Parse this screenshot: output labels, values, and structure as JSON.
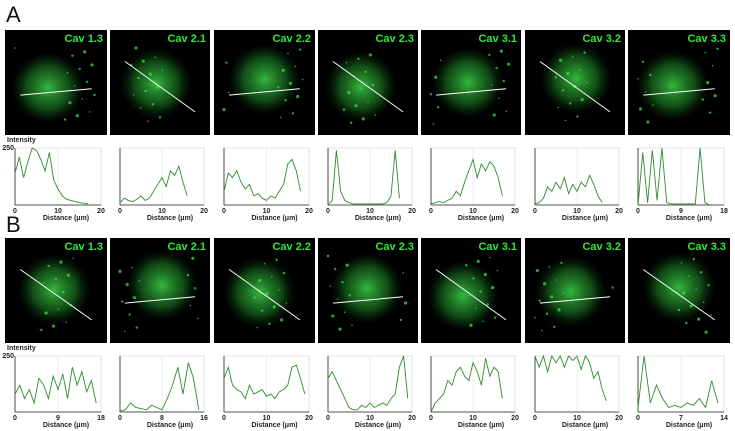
{
  "panel_labels": [
    "A",
    "B"
  ],
  "chart_data": [
    {
      "type": "line",
      "title": "Cav 1.3",
      "y_label": "Intensity",
      "x_label": "Distance (μm)",
      "color": "#2e8b2e",
      "grid": true,
      "xlim": [
        0,
        20
      ],
      "xticks": [
        0,
        10,
        20
      ],
      "ylim": [
        0,
        250
      ],
      "yticks": [
        250
      ],
      "x": [
        0,
        1,
        2,
        3,
        4,
        5,
        6,
        7,
        8,
        9,
        10,
        11,
        12,
        13,
        14,
        15,
        16,
        17
      ],
      "values": [
        140,
        210,
        120,
        190,
        250,
        240,
        200,
        150,
        230,
        110,
        70,
        40,
        25,
        20,
        15,
        10,
        8,
        5
      ]
    },
    {
      "type": "line",
      "title": "Cav 2.1",
      "x_label": "Distance (μm)",
      "color": "#2e8b2e",
      "grid": true,
      "xlim": [
        0,
        20
      ],
      "xticks": [
        0,
        10,
        20
      ],
      "ylim": [
        0,
        250
      ],
      "yticks": [],
      "x": [
        0,
        1,
        2,
        3,
        4,
        5,
        6,
        7,
        8,
        9,
        10,
        11,
        12,
        13,
        14,
        15,
        16
      ],
      "values": [
        10,
        30,
        20,
        15,
        25,
        40,
        20,
        30,
        60,
        90,
        120,
        80,
        150,
        130,
        170,
        100,
        40
      ]
    },
    {
      "type": "line",
      "title": "Cav 2.2",
      "x_label": "Distance (μm)",
      "color": "#2e8b2e",
      "grid": true,
      "xlim": [
        0,
        20
      ],
      "xticks": [
        0,
        10,
        20
      ],
      "ylim": [
        0,
        250
      ],
      "yticks": [],
      "x": [
        0,
        1,
        2,
        3,
        4,
        5,
        6,
        7,
        8,
        9,
        10,
        11,
        12,
        13,
        14,
        15,
        16,
        17,
        18
      ],
      "values": [
        60,
        140,
        120,
        150,
        100,
        70,
        90,
        40,
        50,
        30,
        20,
        40,
        30,
        60,
        90,
        180,
        200,
        150,
        60
      ]
    },
    {
      "type": "line",
      "title": "Cav 2.3",
      "x_label": "Distance (μm)",
      "color": "#2e8b2e",
      "grid": true,
      "xlim": [
        0,
        20
      ],
      "xticks": [
        0,
        10,
        20
      ],
      "ylim": [
        0,
        250
      ],
      "yticks": [],
      "x": [
        0,
        1,
        2,
        3,
        4,
        5,
        6,
        7,
        8,
        9,
        10,
        11,
        12,
        13,
        14,
        15,
        16,
        17
      ],
      "values": [
        0,
        20,
        240,
        60,
        20,
        10,
        5,
        5,
        5,
        5,
        5,
        5,
        5,
        5,
        10,
        40,
        240,
        30
      ]
    },
    {
      "type": "line",
      "title": "Cav 3.1",
      "x_label": "Distance (μm)",
      "color": "#2e8b2e",
      "grid": true,
      "xlim": [
        0,
        20
      ],
      "xticks": [
        0,
        10,
        20
      ],
      "ylim": [
        0,
        250
      ],
      "yticks": [],
      "x": [
        0,
        1,
        2,
        3,
        4,
        5,
        6,
        7,
        8,
        9,
        10,
        11,
        12,
        13,
        14,
        15,
        16,
        17
      ],
      "values": [
        5,
        10,
        15,
        10,
        20,
        30,
        60,
        40,
        100,
        150,
        200,
        120,
        180,
        150,
        190,
        170,
        120,
        40
      ]
    },
    {
      "type": "line",
      "title": "Cav 3.2",
      "x_label": "Distance (μm)",
      "color": "#2e8b2e",
      "grid": true,
      "xlim": [
        0,
        20
      ],
      "xticks": [
        0,
        10,
        20
      ],
      "ylim": [
        0,
        250
      ],
      "yticks": [],
      "x": [
        0,
        1,
        2,
        3,
        4,
        5,
        6,
        7,
        8,
        9,
        10,
        11,
        12,
        13,
        14,
        15,
        16
      ],
      "values": [
        5,
        10,
        30,
        80,
        60,
        100,
        70,
        120,
        50,
        90,
        60,
        100,
        80,
        130,
        90,
        40,
        10
      ]
    },
    {
      "type": "line",
      "title": "Cav 3.3",
      "x_label": "Distance (μm)",
      "color": "#2e8b2e",
      "grid": true,
      "xlim": [
        0,
        18
      ],
      "xticks": [
        0,
        9,
        18
      ],
      "ylim": [
        0,
        250
      ],
      "yticks": [],
      "x": [
        0,
        1,
        2,
        3,
        4,
        5,
        6,
        7,
        8,
        9,
        10,
        11,
        12,
        13,
        14,
        15
      ],
      "values": [
        0,
        230,
        10,
        240,
        20,
        250,
        10,
        5,
        5,
        5,
        5,
        5,
        5,
        250,
        10,
        0
      ]
    },
    {
      "type": "line",
      "title": "Cav 1.3",
      "y_label": "Intensity",
      "x_label": "Distance (μm)",
      "color": "#2e8b2e",
      "grid": true,
      "xlim": [
        0,
        18
      ],
      "xticks": [
        0,
        9,
        18
      ],
      "ylim": [
        0,
        250
      ],
      "yticks": [
        250
      ],
      "x": [
        0,
        1,
        2,
        3,
        4,
        5,
        6,
        7,
        8,
        9,
        10,
        11,
        12,
        13,
        14,
        15,
        16,
        17
      ],
      "values": [
        80,
        120,
        60,
        100,
        40,
        150,
        120,
        60,
        160,
        100,
        170,
        60,
        200,
        120,
        180,
        90,
        140,
        40
      ]
    },
    {
      "type": "line",
      "title": "Cav 2.1",
      "x_label": "Distance (μm)",
      "color": "#2e8b2e",
      "grid": true,
      "xlim": [
        0,
        16
      ],
      "xticks": [
        0,
        8,
        16
      ],
      "ylim": [
        0,
        250
      ],
      "yticks": [],
      "x": [
        0,
        1,
        2,
        3,
        4,
        5,
        6,
        7,
        8,
        9,
        10,
        11,
        12,
        13,
        14,
        15
      ],
      "values": [
        5,
        10,
        40,
        20,
        15,
        10,
        30,
        20,
        10,
        60,
        120,
        200,
        80,
        220,
        150,
        10
      ]
    },
    {
      "type": "line",
      "title": "Cav 2.2",
      "x_label": "Distance (μm)",
      "color": "#2e8b2e",
      "grid": true,
      "xlim": [
        0,
        20
      ],
      "xticks": [
        0,
        10,
        20
      ],
      "ylim": [
        0,
        250
      ],
      "yticks": [],
      "x": [
        0,
        1,
        2,
        3,
        4,
        5,
        6,
        7,
        8,
        9,
        10,
        11,
        12,
        13,
        14,
        15,
        16,
        17,
        18,
        19
      ],
      "values": [
        150,
        200,
        120,
        100,
        90,
        60,
        120,
        80,
        90,
        100,
        70,
        80,
        60,
        90,
        100,
        120,
        200,
        210,
        150,
        80
      ]
    },
    {
      "type": "line",
      "title": "Cav 2.3",
      "x_label": "Distance (μm)",
      "color": "#2e8b2e",
      "grid": true,
      "xlim": [
        0,
        20
      ],
      "xticks": [
        0,
        10,
        20
      ],
      "ylim": [
        0,
        250
      ],
      "yticks": [],
      "x": [
        0,
        1,
        2,
        3,
        4,
        5,
        6,
        7,
        8,
        9,
        10,
        11,
        12,
        13,
        14,
        15,
        16,
        17,
        18,
        19
      ],
      "values": [
        150,
        180,
        140,
        100,
        60,
        20,
        10,
        10,
        30,
        20,
        40,
        20,
        30,
        40,
        30,
        60,
        80,
        200,
        250,
        60
      ]
    },
    {
      "type": "line",
      "title": "Cav 3.1",
      "x_label": "Distance (μm)",
      "color": "#2e8b2e",
      "grid": true,
      "xlim": [
        0,
        20
      ],
      "xticks": [
        0,
        10,
        20
      ],
      "ylim": [
        0,
        250
      ],
      "yticks": [],
      "x": [
        0,
        1,
        2,
        3,
        4,
        5,
        6,
        7,
        8,
        9,
        10,
        11,
        12,
        13,
        14,
        15,
        16,
        17
      ],
      "values": [
        0,
        40,
        60,
        80,
        140,
        120,
        180,
        200,
        160,
        140,
        220,
        180,
        120,
        240,
        160,
        200,
        180,
        60
      ]
    },
    {
      "type": "line",
      "title": "Cav 3.2",
      "x_label": "Distance (μm)",
      "color": "#2e8b2e",
      "grid": true,
      "xlim": [
        0,
        20
      ],
      "xticks": [
        0,
        10,
        20
      ],
      "ylim": [
        0,
        250
      ],
      "yticks": [],
      "x": [
        0,
        1,
        2,
        3,
        4,
        5,
        6,
        7,
        8,
        9,
        10,
        11,
        12,
        13,
        14,
        15,
        16,
        17
      ],
      "values": [
        250,
        200,
        250,
        180,
        250,
        220,
        250,
        200,
        250,
        230,
        250,
        190,
        250,
        220,
        150,
        180,
        100,
        50
      ]
    },
    {
      "type": "line",
      "title": "Cav 3.3",
      "x_label": "Distance (μm)",
      "color": "#2e8b2e",
      "grid": true,
      "xlim": [
        0,
        14
      ],
      "xticks": [
        0,
        7,
        14
      ],
      "ylim": [
        0,
        250
      ],
      "yticks": [],
      "x": [
        0,
        1,
        2,
        3,
        4,
        5,
        6,
        7,
        8,
        9,
        10,
        11,
        12,
        13
      ],
      "values": [
        20,
        250,
        40,
        120,
        60,
        20,
        30,
        20,
        40,
        30,
        60,
        20,
        140,
        40
      ]
    }
  ]
}
